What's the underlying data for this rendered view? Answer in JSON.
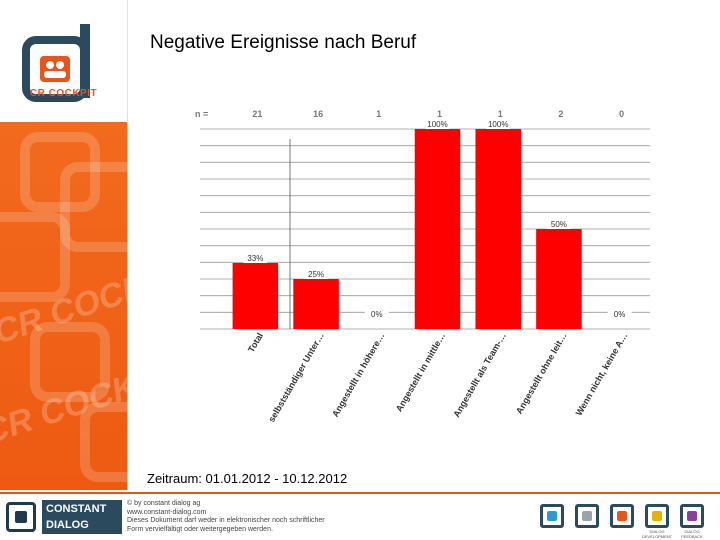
{
  "slide": {
    "title": "Negative Ereignisse nach Beruf",
    "period": "Zeitraum: 01.01.2012 - 10.12.2012",
    "sidebar_logo_text": "CR COCKPIT",
    "sidebar_watermark": "CR COCKPIT"
  },
  "footer": {
    "brand_line1": "CONSTANT",
    "brand_line2": "DIALOG",
    "copyright_lines": [
      "© by constant dialog ag",
      "www.constant-dialog.com",
      "Dieses Dokument darf weder in elektronischer noch schriftlicher",
      "Form vervielfältigt oder weitergegeben werden."
    ],
    "app_icons": [
      {
        "name": "app-icon-1",
        "label": "",
        "color": "#2a9ad6"
      },
      {
        "name": "app-icon-2",
        "label": "",
        "color": "#9aa3a8"
      },
      {
        "name": "app-icon-3",
        "label": "",
        "color": "#e8541a"
      },
      {
        "name": "app-icon-4",
        "label": "DIALOG DEVELOPMENT",
        "color": "#e6b400"
      },
      {
        "name": "app-icon-5",
        "label": "DIALOG FEEDBACK",
        "color": "#8a3fa0"
      }
    ]
  },
  "chart_data": {
    "type": "bar",
    "n_label": "n =",
    "categories": [
      "Total",
      "selbstständiger Unter…",
      "Angestellt in höhere…",
      "Angestellt in mittle…",
      "Angestellt als Team-…",
      "Angestellt ohne leit…",
      "Wenn nicht, keine A…"
    ],
    "n": [
      21,
      16,
      1,
      1,
      1,
      2,
      0
    ],
    "values": [
      33,
      25,
      0,
      100,
      100,
      50,
      0
    ],
    "data_labels": [
      "33%",
      "25%",
      "0%",
      "100%",
      "100%",
      "50%",
      "0%"
    ],
    "ylim": [
      0,
      100
    ],
    "grid": true,
    "bar_color": "#ff0000",
    "gridline_color": "#9a9a9a"
  }
}
